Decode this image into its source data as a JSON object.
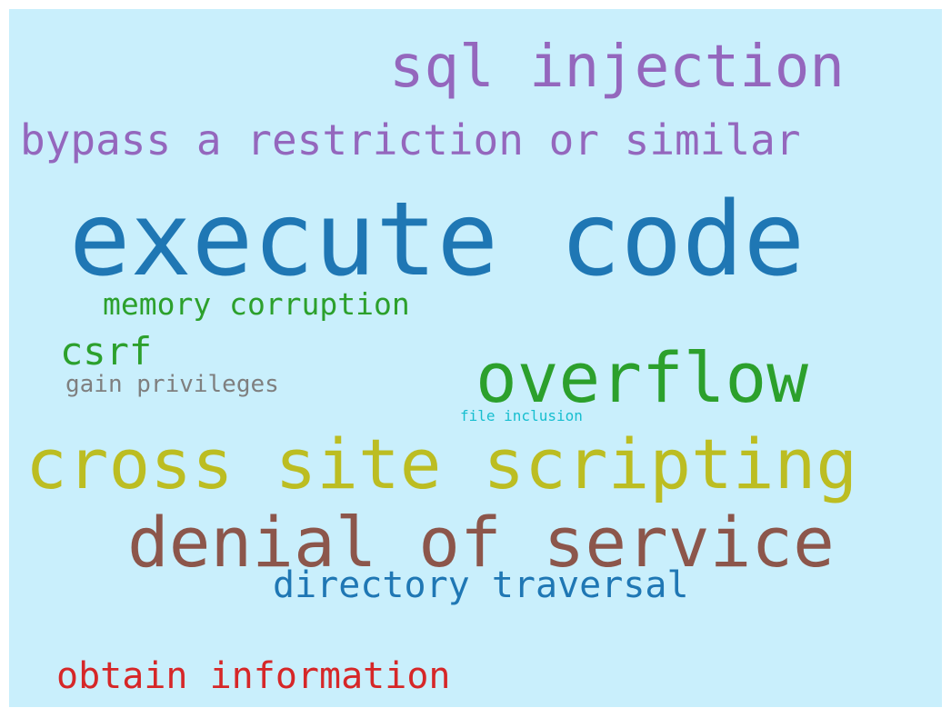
{
  "words": [
    {
      "id": "execute-code",
      "text": "execute code",
      "color": "#1f77b4"
    },
    {
      "id": "cross-site-scripting",
      "text": "cross site scripting",
      "color": "#bcbd22"
    },
    {
      "id": "denial-of-service",
      "text": "denial of service",
      "color": "#8c564b"
    },
    {
      "id": "sql-injection",
      "text": "sql injection",
      "color": "#9467bd"
    },
    {
      "id": "overflow",
      "text": "overflow",
      "color": "#2ca02c"
    },
    {
      "id": "bypass",
      "text": "bypass a restriction or similar",
      "color": "#9467bd"
    },
    {
      "id": "directory-traversal",
      "text": "directory traversal",
      "color": "#1f77b4"
    },
    {
      "id": "obtain-information",
      "text": "obtain information",
      "color": "#d62728"
    },
    {
      "id": "memory-corruption",
      "text": "memory corruption",
      "color": "#2ca02c"
    },
    {
      "id": "csrf",
      "text": "csrf",
      "color": "#2ca02c"
    },
    {
      "id": "gain-privileges",
      "text": "gain privileges",
      "color": "#7f7f7f"
    },
    {
      "id": "file-inclusion",
      "text": "file inclusion",
      "color": "#17becf"
    }
  ],
  "background_color": "#c9effc"
}
